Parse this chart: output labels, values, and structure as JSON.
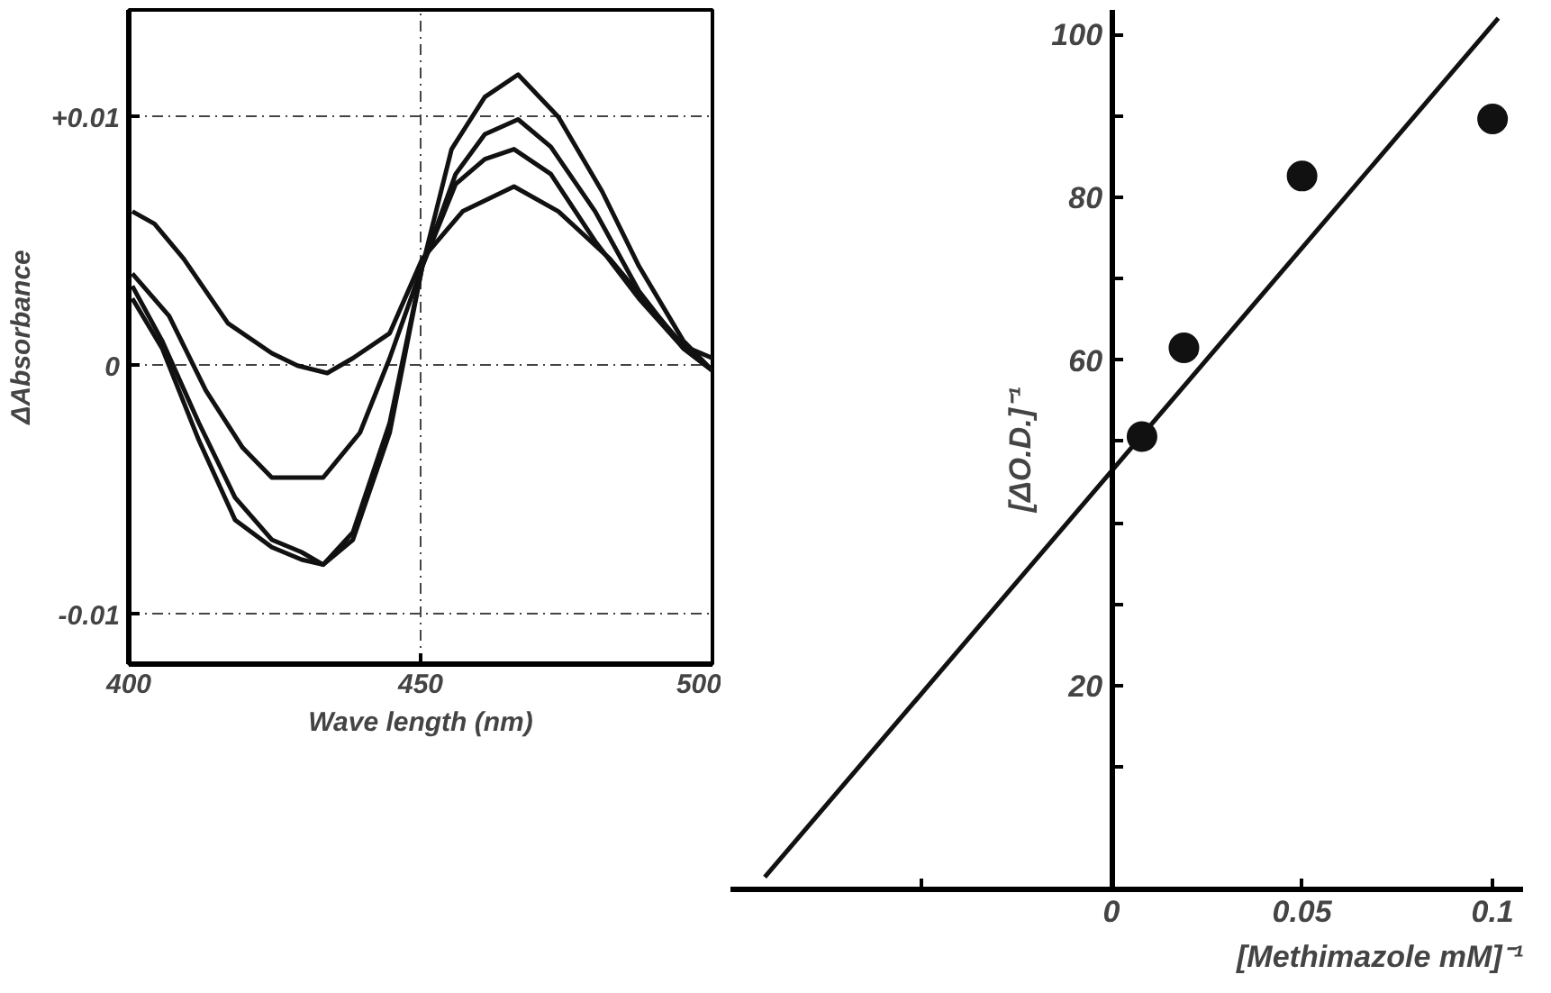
{
  "chart_data": [
    {
      "type": "line",
      "xlabel": "Wave length (nm)",
      "ylabel": "ΔAbsorbance",
      "xlim": [
        400,
        500
      ],
      "ylim": [
        -0.012,
        0.0143
      ],
      "xticks": [
        400,
        450,
        500
      ],
      "yticks": [
        {
          "value": 0.01,
          "label": "+0.01"
        },
        0,
        {
          "value": -0.01,
          "label": "-0.01"
        }
      ],
      "grid": true,
      "series": [
        {
          "color": "#111111",
          "x": [
            400.6,
            404.4,
            409.4,
            417,
            424.5,
            428.9,
            434,
            438.4,
            444.7,
            450.3,
            457.2,
            466,
            473.6,
            482.4,
            489.9,
            495,
            500
          ],
          "values": [
            0.0062,
            0.0057,
            0.0043,
            0.0017,
            0.0005,
            0,
            -0.0003,
            0.0003,
            0.0013,
            0.0043,
            0.0062,
            0.0072,
            0.0062,
            0.0043,
            0.0022,
            0.0008,
            0.0003
          ]
        },
        {
          "color": "#111111",
          "x": [
            400.6,
            406.9,
            413.2,
            419.5,
            424.5,
            433.3,
            439.6,
            444.7,
            450.3,
            456,
            461,
            466,
            472.3,
            479.9,
            487.4,
            495,
            500
          ],
          "values": [
            0.0037,
            0.002,
            -0.001,
            -0.0033,
            -0.0045,
            -0.0045,
            -0.0027,
            0.0003,
            0.004,
            0.0073,
            0.0083,
            0.0087,
            0.0077,
            0.005,
            0.0027,
            0.0007,
            -0.0002
          ]
        },
        {
          "color": "#111111",
          "x": [
            400.6,
            405.7,
            412,
            418.2,
            424.5,
            429.6,
            433.3,
            438.4,
            444.7,
            450.3,
            456,
            461,
            466.7,
            472.3,
            479.9,
            487.4,
            495,
            500
          ],
          "values": [
            0.0032,
            0.001,
            -0.0023,
            -0.0053,
            -0.007,
            -0.0075,
            -0.008,
            -0.0067,
            -0.0023,
            0.004,
            0.0077,
            0.0093,
            0.0099,
            0.0088,
            0.0062,
            0.003,
            0.0007,
            -0.0002
          ]
        },
        {
          "color": "#111111",
          "x": [
            400.6,
            405.7,
            412,
            418.2,
            424.5,
            429.6,
            433.3,
            438.4,
            444.7,
            450.3,
            455.3,
            461,
            466.7,
            473.6,
            481.1,
            487.4,
            495,
            500
          ],
          "values": [
            0.0027,
            0.0007,
            -0.003,
            -0.0062,
            -0.0073,
            -0.0078,
            -0.008,
            -0.007,
            -0.0027,
            0.004,
            0.0087,
            0.0108,
            0.0117,
            0.01,
            0.007,
            0.004,
            0.001,
            -0.0002
          ]
        }
      ]
    },
    {
      "type": "scatter",
      "xlabel": "[Methimazole mM]⁻¹",
      "ylabel": "[ΔO.D.]⁻¹",
      "xlim": [
        -0.1,
        0.108
      ],
      "ylim": [
        -5,
        103
      ],
      "xticks": [
        {
          "value": -0.05,
          "label": null
        },
        0,
        0.05,
        0.1
      ],
      "yticks": [
        {
          "value": 10,
          "label": null
        },
        20,
        {
          "value": 30,
          "label": null
        },
        {
          "value": 40,
          "label": null
        },
        {
          "value": 50,
          "label": null
        },
        60,
        {
          "value": 70,
          "label": null
        },
        80,
        {
          "value": 90,
          "label": null
        },
        100
      ],
      "series": [
        {
          "color": "#111111",
          "marker": "circle",
          "x": [
            0.008,
            0.019,
            0.05,
            0.1
          ],
          "values": [
            50.6,
            61.5,
            82.6,
            89.6
          ]
        },
        {
          "type": "line",
          "marker": "none",
          "color": "#111111",
          "x": [
            -0.091,
            0.1015
          ],
          "values": [
            -3.5,
            102
          ]
        }
      ]
    }
  ]
}
